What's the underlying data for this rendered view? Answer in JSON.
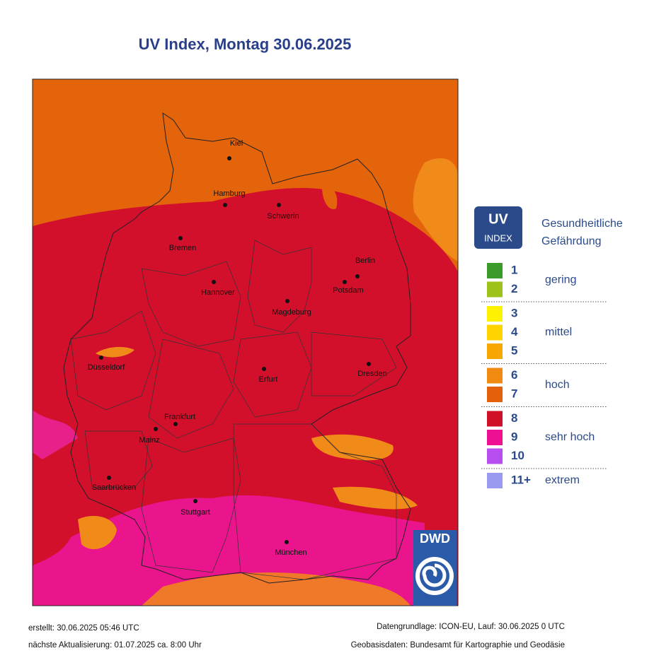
{
  "title": "UV Index, Montag 30.06.2025",
  "cities": [
    "Kiel",
    "Hamburg",
    "Schwerin",
    "Bremen",
    "Berlin",
    "Potsdam",
    "Hannover",
    "Magdeburg",
    "Düsseldorf",
    "Dresden",
    "Erfurt",
    "Frankfurt",
    "Mainz",
    "Saarbrücken",
    "Stuttgart",
    "München"
  ],
  "legend": {
    "logo": [
      "UV",
      "INDEX"
    ],
    "heading": [
      "Gesundheitliche",
      "Gefährdung"
    ],
    "groups": [
      {
        "label": "gering",
        "levels": [
          {
            "text": "1",
            "color": "#3a9a2a"
          },
          {
            "text": "2",
            "color": "#9dc21a"
          }
        ]
      },
      {
        "label": "mittel",
        "levels": [
          {
            "text": "3",
            "color": "#fff200"
          },
          {
            "text": "4",
            "color": "#ffd200"
          },
          {
            "text": "5",
            "color": "#f7a800"
          }
        ]
      },
      {
        "label": "hoch",
        "levels": [
          {
            "text": "6",
            "color": "#f08a10"
          },
          {
            "text": "7",
            "color": "#e4600a"
          }
        ]
      },
      {
        "label": "sehr hoch",
        "levels": [
          {
            "text": "8",
            "color": "#d01028"
          },
          {
            "text": "9",
            "color": "#ee1090"
          },
          {
            "text": "10",
            "color": "#b84ef0"
          }
        ]
      },
      {
        "label": "extrem",
        "levels": [
          {
            "text": "11+",
            "color": "#9a9af0"
          }
        ]
      }
    ]
  },
  "logo": "DWD",
  "footer": {
    "created": "erstellt: 30.06.2025 05:46 UTC",
    "next": "nächste Aktualisierung:  01.07.2025 ca. 8:00 Uhr",
    "source": "Datengrundlage: ICON-EU, Lauf: 30.06.2025 0 UTC",
    "geo": "Geobasisdaten: Bundesamt für Kartographie und Geodäsie"
  }
}
